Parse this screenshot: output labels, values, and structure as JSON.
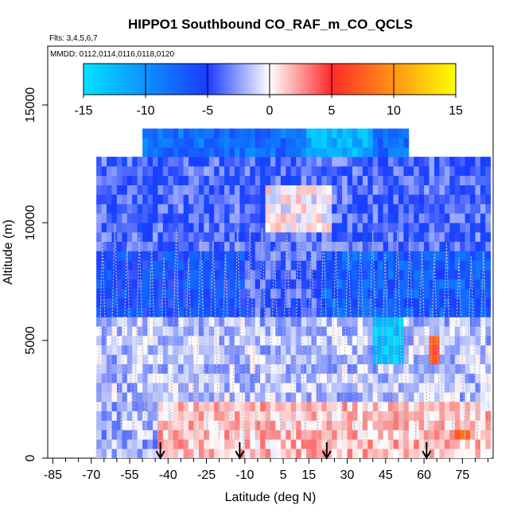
{
  "chart_data": {
    "type": "heatmap",
    "title": "HIPPO1 Southbound CO_RAF_m_CO_QCLS",
    "subtitle_flights": "Flts: 3,4,5,6,7",
    "subtitle_dates": "MMDD: 0112,0114,0116,0118,0120",
    "xlabel": "Latitude (deg N)",
    "ylabel": "Altitude (m)",
    "xlim": [
      -87,
      87
    ],
    "ylim": [
      0,
      17500
    ],
    "x_ticks": [
      -85,
      -70,
      -55,
      -40,
      -25,
      -10,
      5,
      15,
      30,
      45,
      60,
      75
    ],
    "x_tick_labels": [
      "-85",
      "-70",
      "-55",
      "-40",
      "-25",
      "-10",
      "5",
      "15",
      "30",
      "45",
      "60",
      "75"
    ],
    "y_ticks": [
      0,
      5000,
      10000,
      15000
    ],
    "y_tick_labels": [
      "0",
      "5000",
      "10000",
      "15000"
    ],
    "colorbar": {
      "range": [
        -15,
        15
      ],
      "ticks": [
        -15,
        -10,
        -5,
        0,
        5,
        10,
        15
      ],
      "tick_labels": [
        "-15",
        "-10",
        "-5",
        "0",
        "5",
        "10",
        "15"
      ],
      "colors": {
        "min": "#00e5ff",
        "neg_mid": "#1a3cff",
        "zero": "#ffffff",
        "pos_mid": "#ff2a2a",
        "max": "#ffff00"
      }
    },
    "arrow_latitudes": [
      -43,
      -12,
      22,
      61
    ],
    "regions": [
      {
        "lat0": -68,
        "lat1": 86,
        "alt0": 0,
        "alt1": 2500,
        "value": 1.5
      },
      {
        "lat0": -68,
        "lat1": -44,
        "alt0": 0,
        "alt1": 2500,
        "value": -2
      },
      {
        "lat0": -68,
        "lat1": 86,
        "alt0": 2500,
        "alt1": 6000,
        "value": -1.5
      },
      {
        "lat0": -68,
        "lat1": -10,
        "alt0": 6000,
        "alt1": 9000,
        "value": -6
      },
      {
        "lat0": -10,
        "lat1": 20,
        "alt0": 6000,
        "alt1": 9000,
        "value": -4
      },
      {
        "lat0": 20,
        "lat1": 86,
        "alt0": 6000,
        "alt1": 9000,
        "value": -7
      },
      {
        "lat0": -68,
        "lat1": 86,
        "alt0": 9000,
        "alt1": 13000,
        "value": -4
      },
      {
        "lat0": -50,
        "lat1": 55,
        "alt0": 13000,
        "alt1": 14000,
        "value": -8
      },
      {
        "lat0": 15,
        "lat1": 40,
        "alt0": 13000,
        "alt1": 14000,
        "value": -12
      },
      {
        "lat0": -2,
        "lat1": 25,
        "alt0": 9500,
        "alt1": 11500,
        "value": 0
      },
      {
        "lat0": 40,
        "lat1": 52,
        "alt0": 4200,
        "alt1": 6000,
        "value": -13
      },
      {
        "lat0": 63,
        "lat1": 66,
        "alt0": 4200,
        "alt1": 5200,
        "value": 6
      },
      {
        "lat0": 73,
        "lat1": 78,
        "alt0": 800,
        "alt1": 1200,
        "value": 8
      }
    ]
  }
}
